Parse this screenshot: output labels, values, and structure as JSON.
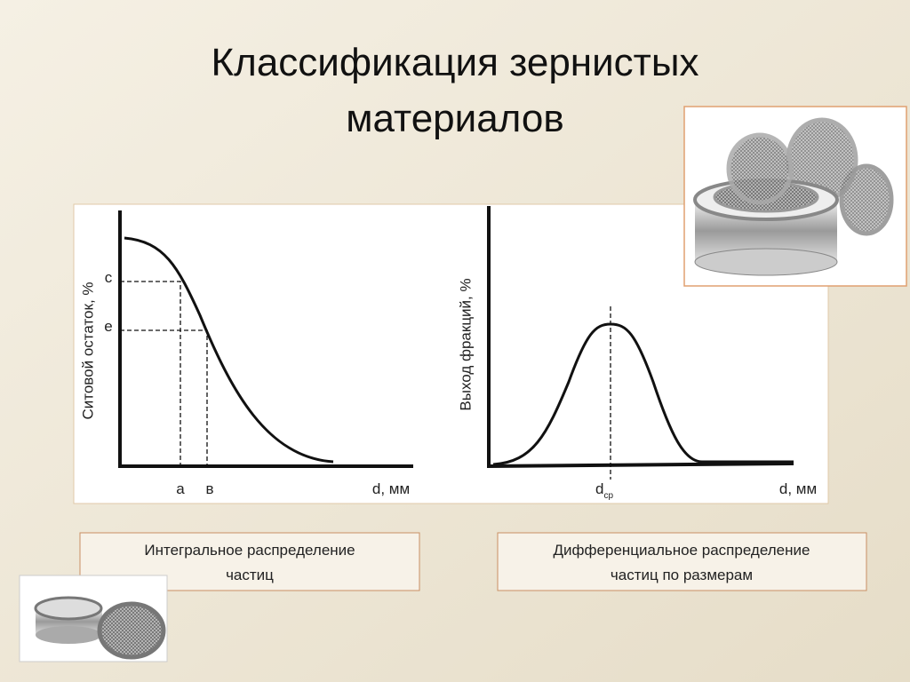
{
  "title": [
    "Классификация зернистых",
    "материалов"
  ],
  "left_diagram": {
    "y_label": "Ситовой остаток, %",
    "x_label": "d, мм",
    "y_marks": [
      "c",
      "e"
    ],
    "x_marks": [
      "a",
      "в"
    ]
  },
  "right_diagram": {
    "y_label": "Выход фракций, %",
    "x_label": "d, мм",
    "x_mark": "d",
    "x_mark_sub": "ср"
  },
  "captions": [
    [
      "Интегральное распределение",
      "частиц"
    ],
    [
      "Дифференциальное распределение",
      "частиц по размерам"
    ]
  ]
}
